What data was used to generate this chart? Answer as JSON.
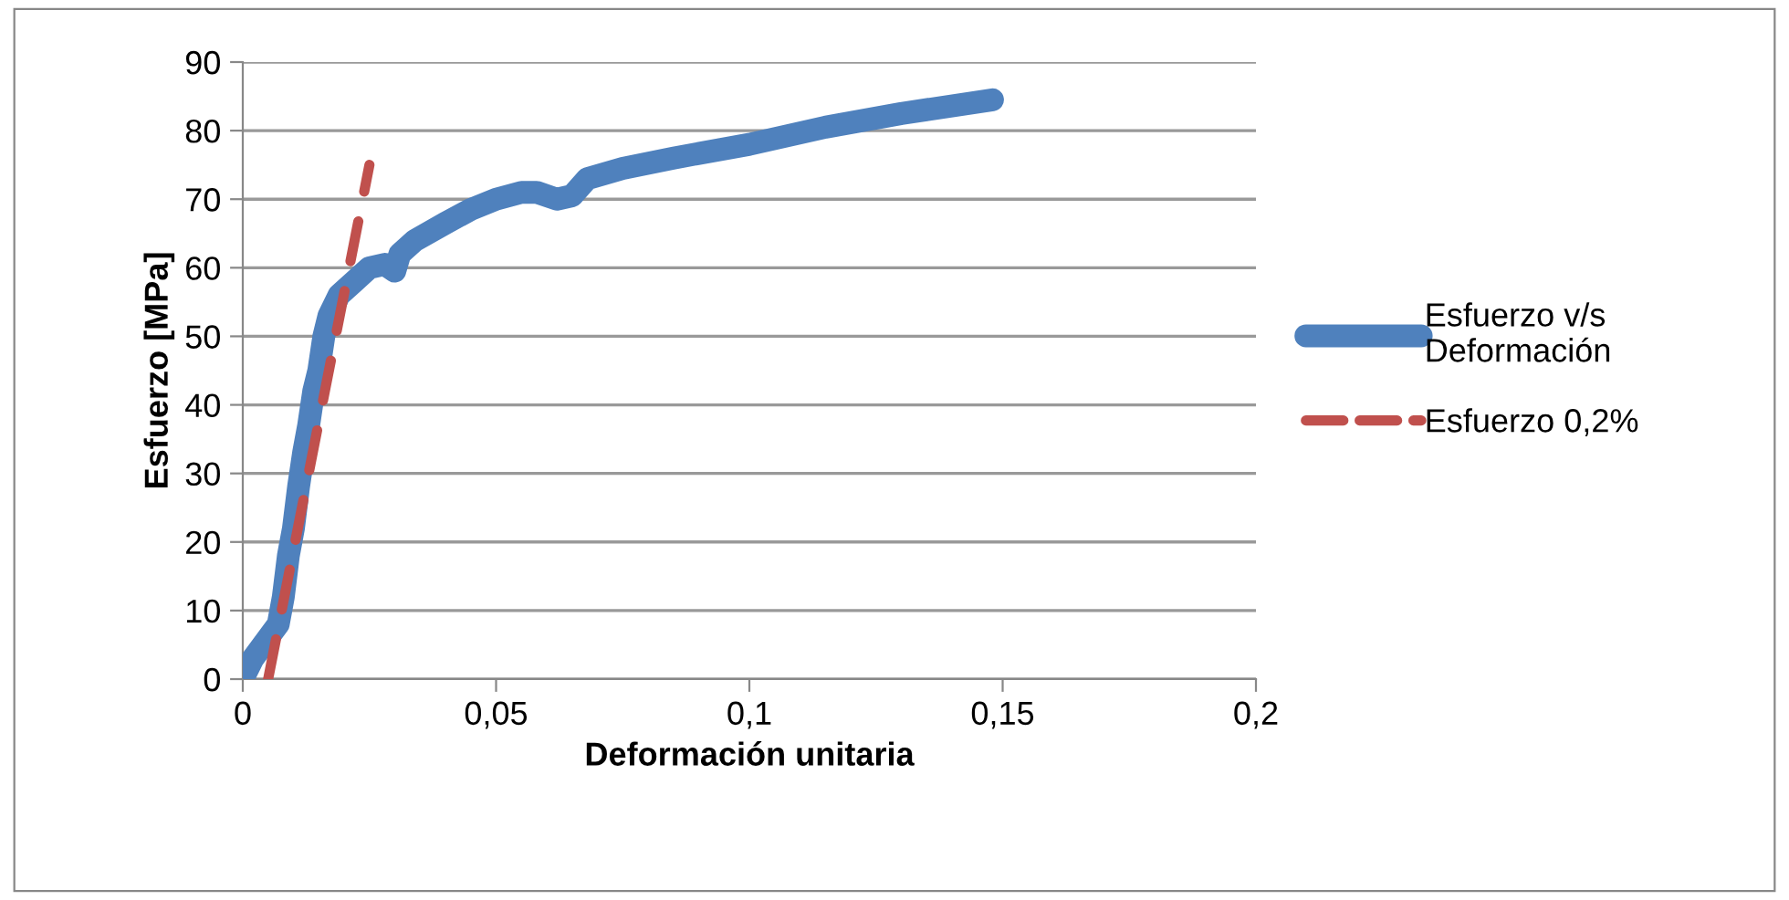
{
  "chart_data": {
    "type": "line",
    "xlabel": "Deformación unitaria",
    "ylabel": "Esfuerzo [MPa]",
    "xlim": [
      0,
      0.2
    ],
    "xticks": [
      0,
      {
        "value": 0.05,
        "label": "0,05"
      },
      {
        "value": 0.1,
        "label": "0,1"
      },
      {
        "value": 0.15,
        "label": "0,15"
      },
      {
        "value": 0.2,
        "label": "0,2"
      }
    ],
    "ylim": [
      0,
      90
    ],
    "yticks": [
      0,
      10,
      20,
      30,
      40,
      50,
      60,
      70,
      80,
      90
    ],
    "grid": "y",
    "legend": "right",
    "marker": "none",
    "series": [
      {
        "name": "Esfuerzo v/s Deformación",
        "color": "#4f81bd",
        "line_style": "solid",
        "x": [
          0,
          0.002,
          0.005,
          0.007,
          0.008,
          0.009,
          0.01,
          0.011,
          0.012,
          0.013,
          0.014,
          0.015,
          0.016,
          0.017,
          0.019,
          0.022,
          0.025,
          0.028,
          0.03,
          0.031,
          0.034,
          0.04,
          0.045,
          0.05,
          0.055,
          0.058,
          0.062,
          0.065,
          0.068,
          0.075,
          0.085,
          0.1,
          0.115,
          0.13,
          0.148
        ],
        "values": [
          0,
          3,
          6,
          8,
          12,
          18,
          22,
          28,
          33,
          37,
          42,
          45,
          50,
          53,
          56,
          58,
          60,
          60.5,
          59.5,
          62,
          64,
          66.5,
          68.5,
          70,
          71,
          71,
          70,
          70.5,
          73,
          74.5,
          76,
          78,
          80.5,
          82.5,
          84.5
        ]
      },
      {
        "name": "Esfuerzo 0,2%",
        "color": "#c0504d",
        "line_style": "dashed",
        "x": [
          0.005,
          0.025
        ],
        "values": [
          0,
          75
        ]
      }
    ]
  }
}
